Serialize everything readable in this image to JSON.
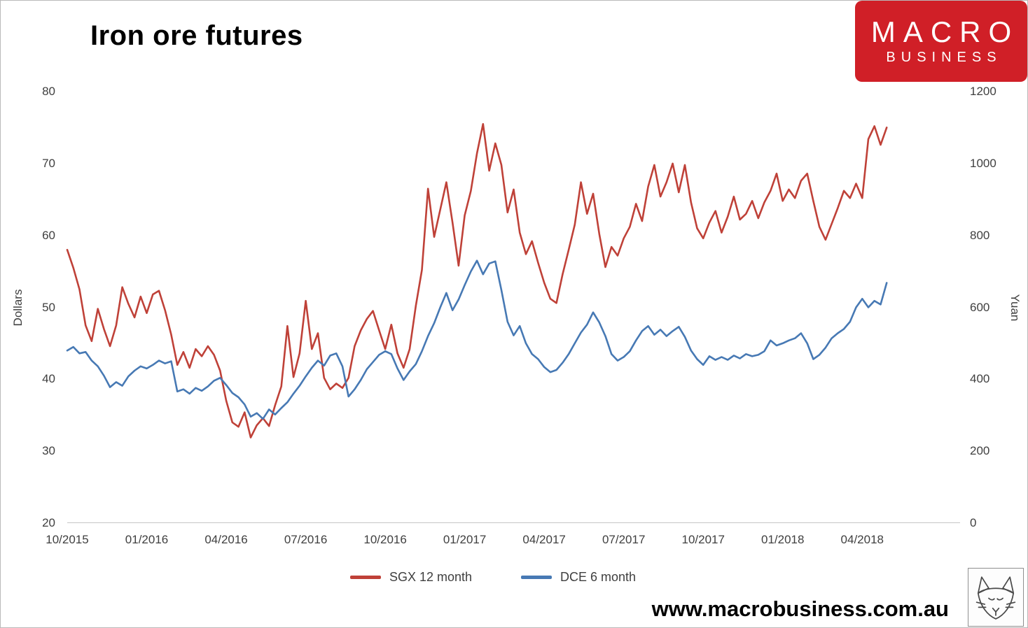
{
  "title": "Iron ore futures",
  "logo": {
    "line1": "MACRO",
    "line2": "BUSINESS",
    "bg_color": "#d01f27",
    "text_color": "#ffffff"
  },
  "watermark": "www.macrobusiness.com.au",
  "chart_data": {
    "type": "line",
    "title": "Iron ore futures",
    "ylabel_left": "Dollars",
    "ylabel_right": "Yuan",
    "ylim_left": [
      20,
      80
    ],
    "ylim_right": [
      0,
      1200
    ],
    "x_unit": "weeks since 10/2015",
    "x_domain_weeks": [
      0,
      146
    ],
    "grid": false,
    "legend_position": "bottom-center",
    "y_ticks_left": [
      80,
      70,
      60,
      50,
      40,
      30,
      20
    ],
    "y_ticks_right": [
      1200,
      1000,
      800,
      600,
      400,
      200,
      0
    ],
    "x_ticks": [
      {
        "label": "10/2015",
        "week": 0
      },
      {
        "label": "01/2016",
        "week": 13
      },
      {
        "label": "04/2016",
        "week": 26
      },
      {
        "label": "07/2016",
        "week": 39
      },
      {
        "label": "10/2016",
        "week": 52
      },
      {
        "label": "01/2017",
        "week": 65
      },
      {
        "label": "04/2017",
        "week": 78
      },
      {
        "label": "07/2017",
        "week": 91
      },
      {
        "label": "10/2017",
        "week": 104
      },
      {
        "label": "01/2018",
        "week": 117
      },
      {
        "label": "04/2018",
        "week": 130
      }
    ],
    "series": [
      {
        "name": "SGX 12 month",
        "axis": "left",
        "unit": "USD/t",
        "color": "#bf4138",
        "values": [
          58.0,
          55.5,
          52.5,
          47.5,
          45.3,
          49.8,
          47.0,
          44.6,
          47.5,
          52.8,
          50.5,
          48.6,
          51.5,
          49.2,
          51.8,
          52.3,
          49.6,
          46.2,
          42.0,
          43.8,
          41.6,
          44.2,
          43.2,
          44.6,
          43.4,
          41.2,
          37.0,
          34.0,
          33.4,
          35.4,
          31.9,
          33.6,
          34.6,
          33.5,
          36.4,
          39.0,
          47.4,
          40.3,
          43.6,
          50.9,
          44.2,
          46.4,
          40.2,
          38.6,
          39.4,
          38.8,
          40.2,
          44.6,
          46.8,
          48.4,
          49.5,
          46.8,
          44.2,
          47.6,
          43.6,
          41.6,
          44.2,
          50.2,
          55.2,
          66.5,
          59.8,
          63.6,
          67.4,
          61.8,
          55.8,
          62.8,
          66.2,
          71.4,
          75.5,
          69.0,
          72.8,
          69.8,
          63.2,
          66.4,
          60.4,
          57.4,
          59.2,
          56.2,
          53.4,
          51.2,
          50.6,
          54.6,
          58.0,
          61.5,
          67.4,
          63.0,
          65.8,
          60.2,
          55.6,
          58.4,
          57.2,
          59.6,
          61.2,
          64.4,
          62.0,
          66.8,
          69.8,
          65.4,
          67.4,
          70.0,
          66.0,
          69.8,
          64.6,
          61.0,
          59.6,
          61.8,
          63.4,
          60.4,
          62.6,
          65.4,
          62.2,
          63.0,
          64.8,
          62.4,
          64.6,
          66.2,
          68.6,
          64.8,
          66.4,
          65.2,
          67.6,
          68.6,
          64.8,
          61.2,
          59.4,
          61.6,
          63.8,
          66.2,
          65.2,
          67.2,
          65.2,
          73.4,
          75.2,
          72.6,
          75.0
        ]
      },
      {
        "name": "DCE 6 month",
        "axis": "right",
        "unit": "CNY/t",
        "color": "#4779b4",
        "values": [
          480,
          490,
          472,
          476,
          452,
          436,
          410,
          378,
          392,
          382,
          408,
          424,
          436,
          430,
          440,
          452,
          444,
          450,
          366,
          372,
          360,
          376,
          368,
          380,
          396,
          404,
          384,
          362,
          350,
          330,
          296,
          306,
          290,
          316,
          302,
          320,
          336,
          360,
          382,
          408,
          432,
          452,
          438,
          466,
          472,
          436,
          352,
          372,
          398,
          428,
          448,
          468,
          478,
          470,
          430,
          398,
          422,
          442,
          478,
          520,
          556,
          600,
          640,
          592,
          622,
          662,
          700,
          730,
          692,
          722,
          728,
          648,
          560,
          522,
          548,
          500,
          470,
          456,
          434,
          420,
          426,
          446,
          470,
          500,
          530,
          552,
          586,
          558,
          520,
          470,
          452,
          462,
          478,
          508,
          534,
          548,
          524,
          538,
          520,
          534,
          546,
          518,
          480,
          456,
          440,
          464,
          454,
          462,
          454,
          466,
          458,
          470,
          464,
          468,
          478,
          508,
          494,
          500,
          508,
          514,
          528,
          500,
          456,
          468,
          488,
          514,
          528,
          540,
          560,
          600,
          624,
          600,
          618,
          608,
          668
        ]
      }
    ]
  }
}
